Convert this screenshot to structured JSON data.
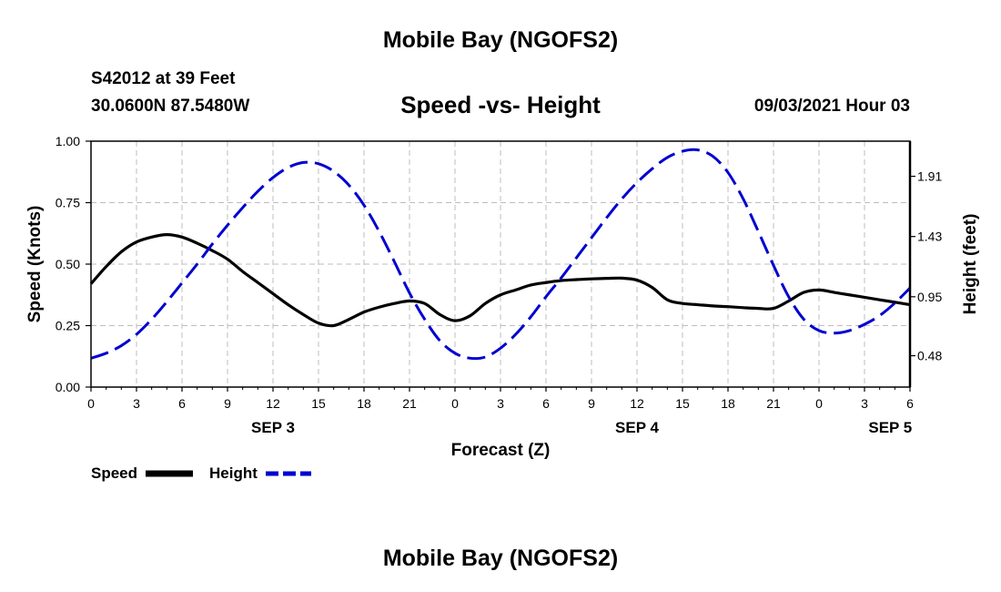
{
  "header": {
    "top_title": "Mobile Bay (NGOFS2)",
    "station": "S42012 at 39 Feet",
    "coords": "30.0600N  87.5480W",
    "chart_title": "Speed -vs- Height",
    "datetime": "09/03/2021 Hour 03",
    "bottom_title": "Mobile Bay (NGOFS2)"
  },
  "chart_data": {
    "type": "line",
    "title": "Speed -vs- Height",
    "xlabel": "Forecast (Z)",
    "ylabel": "Speed (Knots)",
    "y2label": "Height (feet)",
    "x_range_hours": [
      0,
      54
    ],
    "x_ticks": [
      {
        "h": 0,
        "label": "0"
      },
      {
        "h": 3,
        "label": "3"
      },
      {
        "h": 6,
        "label": "6"
      },
      {
        "h": 9,
        "label": "9"
      },
      {
        "h": 12,
        "label": "12"
      },
      {
        "h": 15,
        "label": "15"
      },
      {
        "h": 18,
        "label": "18"
      },
      {
        "h": 21,
        "label": "21"
      },
      {
        "h": 24,
        "label": "0"
      },
      {
        "h": 27,
        "label": "3"
      },
      {
        "h": 30,
        "label": "6"
      },
      {
        "h": 33,
        "label": "9"
      },
      {
        "h": 36,
        "label": "12"
      },
      {
        "h": 39,
        "label": "15"
      },
      {
        "h": 42,
        "label": "18"
      },
      {
        "h": 45,
        "label": "21"
      },
      {
        "h": 48,
        "label": "0"
      },
      {
        "h": 51,
        "label": "3"
      },
      {
        "h": 54,
        "label": "6"
      }
    ],
    "day_labels": [
      {
        "h": 12,
        "label": "SEP 3"
      },
      {
        "h": 36,
        "label": "SEP 4"
      },
      {
        "h": 52.7,
        "label": "SEP 5"
      }
    ],
    "ylim": [
      0,
      1
    ],
    "y_ticks": [
      {
        "v": 0,
        "label": "0.00"
      },
      {
        "v": 0.25,
        "label": "0.25"
      },
      {
        "v": 0.5,
        "label": "0.50"
      },
      {
        "v": 0.75,
        "label": "0.75"
      },
      {
        "v": 1.0,
        "label": "1.00"
      }
    ],
    "y2lim": [
      0.23,
      2.19
    ],
    "y2_ticks": [
      {
        "v": 0.48,
        "label": "0.48"
      },
      {
        "v": 0.95,
        "label": "0.95"
      },
      {
        "v": 1.43,
        "label": "1.43"
      },
      {
        "v": 1.91,
        "label": "1.91"
      }
    ],
    "grid": true,
    "legend_position": "bottom-left",
    "series": [
      {
        "name": "Speed",
        "axis": "left",
        "color": "#000000",
        "style": "solid",
        "points": [
          [
            0,
            0.42
          ],
          [
            1,
            0.49
          ],
          [
            2,
            0.55
          ],
          [
            3,
            0.59
          ],
          [
            4,
            0.61
          ],
          [
            5,
            0.62
          ],
          [
            6,
            0.61
          ],
          [
            7,
            0.585
          ],
          [
            8,
            0.555
          ],
          [
            9,
            0.52
          ],
          [
            10,
            0.47
          ],
          [
            11,
            0.425
          ],
          [
            12,
            0.38
          ],
          [
            13,
            0.335
          ],
          [
            14,
            0.295
          ],
          [
            15,
            0.26
          ],
          [
            16,
            0.25
          ],
          [
            17,
            0.275
          ],
          [
            18,
            0.305
          ],
          [
            19,
            0.325
          ],
          [
            20,
            0.34
          ],
          [
            21,
            0.35
          ],
          [
            22,
            0.34
          ],
          [
            23,
            0.295
          ],
          [
            24,
            0.27
          ],
          [
            25,
            0.29
          ],
          [
            26,
            0.34
          ],
          [
            27,
            0.375
          ],
          [
            28,
            0.395
          ],
          [
            29,
            0.415
          ],
          [
            30,
            0.425
          ],
          [
            31,
            0.433
          ],
          [
            32,
            0.437
          ],
          [
            33,
            0.44
          ],
          [
            34,
            0.442
          ],
          [
            35,
            0.443
          ],
          [
            36,
            0.435
          ],
          [
            37,
            0.405
          ],
          [
            38,
            0.355
          ],
          [
            39,
            0.34
          ],
          [
            40,
            0.335
          ],
          [
            41,
            0.33
          ],
          [
            42,
            0.327
          ],
          [
            43,
            0.323
          ],
          [
            44,
            0.32
          ],
          [
            45,
            0.32
          ],
          [
            46,
            0.35
          ],
          [
            47,
            0.385
          ],
          [
            48,
            0.395
          ],
          [
            49,
            0.385
          ],
          [
            50,
            0.375
          ],
          [
            51,
            0.365
          ],
          [
            52,
            0.355
          ],
          [
            53,
            0.345
          ],
          [
            54,
            0.335
          ]
        ]
      },
      {
        "name": "Height",
        "axis": "right",
        "color": "#0000d0",
        "style": "dashed",
        "points": [
          [
            0,
            0.46
          ],
          [
            1,
            0.5
          ],
          [
            2,
            0.56
          ],
          [
            3,
            0.65
          ],
          [
            4,
            0.77
          ],
          [
            5,
            0.91
          ],
          [
            6,
            1.06
          ],
          [
            7,
            1.21
          ],
          [
            8,
            1.37
          ],
          [
            9,
            1.52
          ],
          [
            10,
            1.66
          ],
          [
            11,
            1.79
          ],
          [
            12,
            1.9
          ],
          [
            13,
            1.98
          ],
          [
            14,
            2.02
          ],
          [
            15,
            2.01
          ],
          [
            16,
            1.95
          ],
          [
            17,
            1.84
          ],
          [
            18,
            1.68
          ],
          [
            19,
            1.47
          ],
          [
            20,
            1.23
          ],
          [
            21,
            0.98
          ],
          [
            22,
            0.77
          ],
          [
            23,
            0.6
          ],
          [
            24,
            0.5
          ],
          [
            25,
            0.46
          ],
          [
            26,
            0.47
          ],
          [
            27,
            0.54
          ],
          [
            28,
            0.65
          ],
          [
            29,
            0.79
          ],
          [
            30,
            0.95
          ],
          [
            31,
            1.1
          ],
          [
            32,
            1.26
          ],
          [
            33,
            1.42
          ],
          [
            34,
            1.58
          ],
          [
            35,
            1.73
          ],
          [
            36,
            1.86
          ],
          [
            37,
            1.97
          ],
          [
            38,
            2.06
          ],
          [
            39,
            2.11
          ],
          [
            40,
            2.12
          ],
          [
            41,
            2.07
          ],
          [
            42,
            1.94
          ],
          [
            43,
            1.73
          ],
          [
            44,
            1.47
          ],
          [
            45,
            1.2
          ],
          [
            46,
            0.95
          ],
          [
            47,
            0.77
          ],
          [
            48,
            0.68
          ],
          [
            49,
            0.66
          ],
          [
            50,
            0.68
          ],
          [
            51,
            0.73
          ],
          [
            52,
            0.8
          ],
          [
            53,
            0.9
          ],
          [
            54,
            1.02
          ]
        ]
      }
    ]
  },
  "legend": {
    "speed_label": "Speed",
    "height_label": "Height"
  }
}
